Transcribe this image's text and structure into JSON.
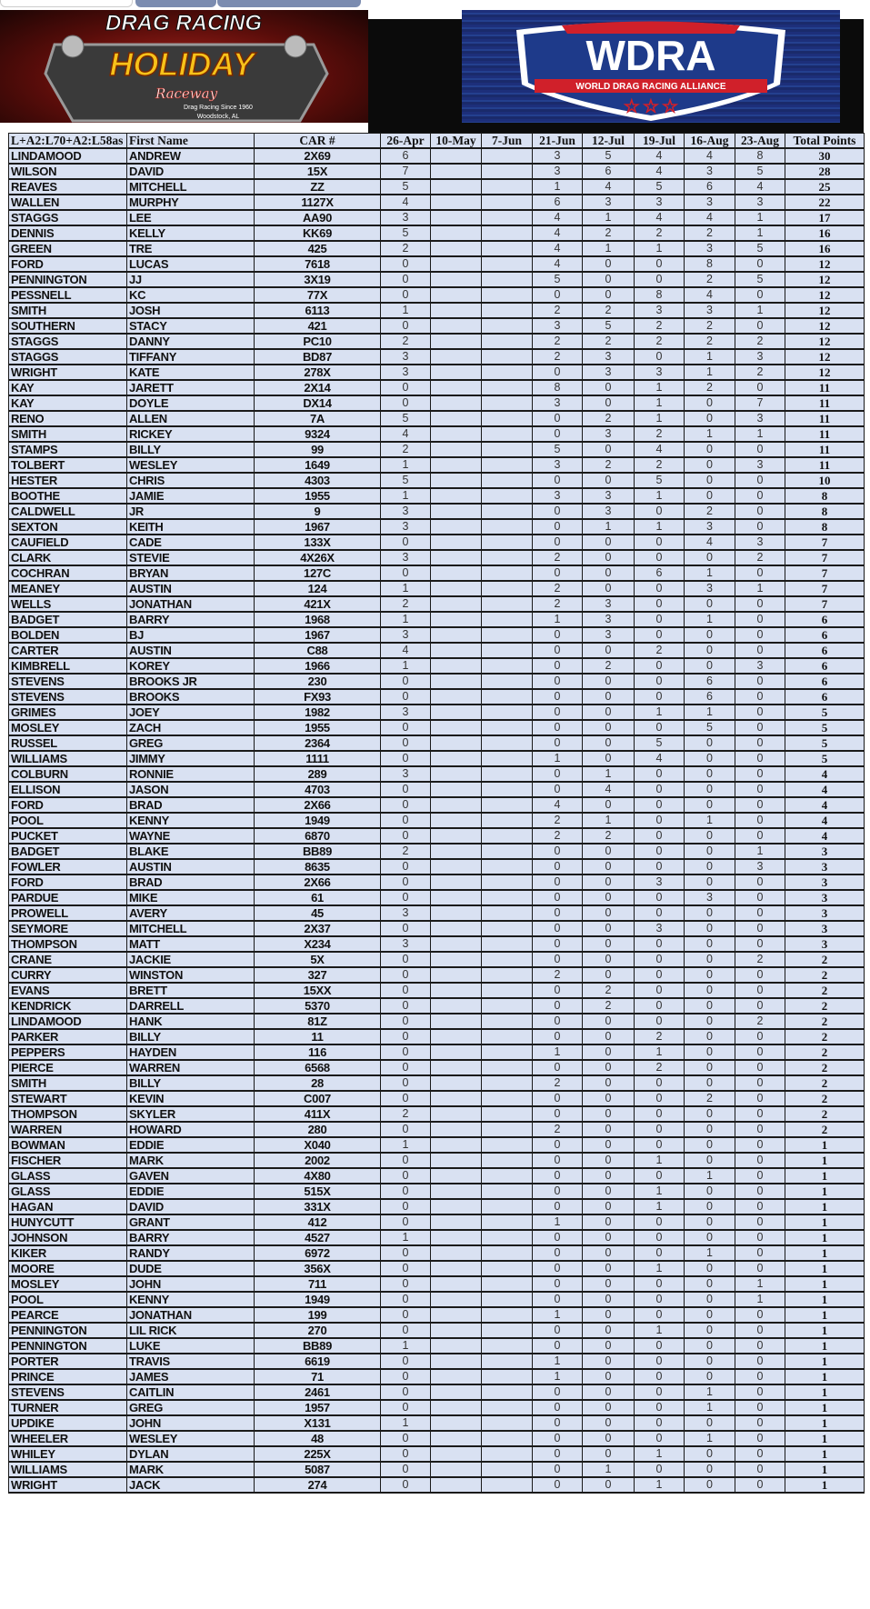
{
  "colors": {
    "cell_bg": "#d9e1f2",
    "border": "#1a1a1a",
    "logo_left_bg": "#8a1a12",
    "logo_right_bg": "#1d2f7a",
    "logo_yellow": "#f7c21a",
    "wdra_red": "#d0202a"
  },
  "logos": {
    "left": {
      "top_text": "DRAG RACING",
      "main_text": "HOLIDAY",
      "script_text": "Raceway",
      "tagline": "Drag Racing Since 1960",
      "location": "Woodstock, AL"
    },
    "right": {
      "main_text": "WDRA",
      "banner_text": "WORLD DRAG RACING ALLIANCE"
    }
  },
  "table": {
    "headers": [
      "L+A2:L70+A2:L58as",
      "First Name",
      "CAR #",
      "26-Apr",
      "10-May",
      "7-Jun",
      "21-Jun",
      "12-Jul",
      "19-Jul",
      "16-Aug",
      "23-Aug",
      "Total Points"
    ],
    "rows": [
      [
        "LINDAMOOD",
        "ANDREW",
        "2X69",
        "6",
        "",
        "",
        "3",
        "5",
        "4",
        "4",
        "8",
        "30"
      ],
      [
        "WILSON",
        "DAVID",
        "15X",
        "7",
        "",
        "",
        "3",
        "6",
        "4",
        "3",
        "5",
        "28"
      ],
      [
        "REAVES",
        "MITCHELL",
        "ZZ",
        "5",
        "",
        "",
        "1",
        "4",
        "5",
        "6",
        "4",
        "25"
      ],
      [
        "WALLEN",
        "MURPHY",
        "1127X",
        "4",
        "",
        "",
        "6",
        "3",
        "3",
        "3",
        "3",
        "22"
      ],
      [
        "STAGGS",
        "LEE",
        "AA90",
        "3",
        "",
        "",
        "4",
        "1",
        "4",
        "4",
        "1",
        "17"
      ],
      [
        "DENNIS",
        "KELLY",
        "KK69",
        "5",
        "",
        "",
        "4",
        "2",
        "2",
        "2",
        "1",
        "16"
      ],
      [
        "GREEN",
        "TRE",
        "425",
        "2",
        "",
        "",
        "4",
        "1",
        "1",
        "3",
        "5",
        "16"
      ],
      [
        "FORD",
        "LUCAS",
        "7618",
        "0",
        "",
        "",
        "4",
        "0",
        "0",
        "8",
        "0",
        "12"
      ],
      [
        "PENNINGTON",
        "JJ",
        "3X19",
        "0",
        "",
        "",
        "5",
        "0",
        "0",
        "2",
        "5",
        "12"
      ],
      [
        "PESSNELL",
        "KC",
        "77X",
        "0",
        "",
        "",
        "0",
        "0",
        "8",
        "4",
        "0",
        "12"
      ],
      [
        "SMITH",
        "JOSH",
        "6113",
        "1",
        "",
        "",
        "2",
        "2",
        "3",
        "3",
        "1",
        "12"
      ],
      [
        "SOUTHERN",
        "STACY",
        "421",
        "0",
        "",
        "",
        "3",
        "5",
        "2",
        "2",
        "0",
        "12"
      ],
      [
        "STAGGS",
        "DANNY",
        "PC10",
        "2",
        "",
        "",
        "2",
        "2",
        "2",
        "2",
        "2",
        "12"
      ],
      [
        "STAGGS",
        "TIFFANY",
        "BD87",
        "3",
        "",
        "",
        "2",
        "3",
        "0",
        "1",
        "3",
        "12"
      ],
      [
        "WRIGHT",
        "KATE",
        "278X",
        "3",
        "",
        "",
        "0",
        "3",
        "3",
        "1",
        "2",
        "12"
      ],
      [
        "KAY",
        "JARETT",
        "2X14",
        "0",
        "",
        "",
        "8",
        "0",
        "1",
        "2",
        "0",
        "11"
      ],
      [
        "KAY",
        "DOYLE",
        "DX14",
        "0",
        "",
        "",
        "3",
        "0",
        "1",
        "0",
        "7",
        "11"
      ],
      [
        "RENO",
        "ALLEN",
        "7A",
        "5",
        "",
        "",
        "0",
        "2",
        "1",
        "0",
        "3",
        "11"
      ],
      [
        "SMITH",
        "RICKEY",
        "9324",
        "4",
        "",
        "",
        "0",
        "3",
        "2",
        "1",
        "1",
        "11"
      ],
      [
        "STAMPS",
        "BILLY",
        "99",
        "2",
        "",
        "",
        "5",
        "0",
        "4",
        "0",
        "0",
        "11"
      ],
      [
        "TOLBERT",
        "WESLEY",
        "1649",
        "1",
        "",
        "",
        "3",
        "2",
        "2",
        "0",
        "3",
        "11"
      ],
      [
        "HESTER",
        "CHRIS",
        "4303",
        "5",
        "",
        "",
        "0",
        "0",
        "5",
        "0",
        "0",
        "10"
      ],
      [
        "BOOTHE",
        "JAMIE",
        "1955",
        "1",
        "",
        "",
        "3",
        "3",
        "1",
        "0",
        "0",
        "8"
      ],
      [
        "CALDWELL",
        "JR",
        "9",
        "3",
        "",
        "",
        "0",
        "3",
        "0",
        "2",
        "0",
        "8"
      ],
      [
        "SEXTON",
        "KEITH",
        "1967",
        "3",
        "",
        "",
        "0",
        "1",
        "1",
        "3",
        "0",
        "8"
      ],
      [
        "CAUFIELD",
        "CADE",
        "133X",
        "0",
        "",
        "",
        "0",
        "0",
        "0",
        "4",
        "3",
        "7"
      ],
      [
        "CLARK",
        "STEVIE",
        "4X26X",
        "3",
        "",
        "",
        "2",
        "0",
        "0",
        "0",
        "2",
        "7"
      ],
      [
        "COCHRAN",
        "BRYAN",
        "127C",
        "0",
        "",
        "",
        "0",
        "0",
        "6",
        "1",
        "0",
        "7"
      ],
      [
        "MEANEY",
        "AUSTIN",
        "124",
        "1",
        "",
        "",
        "2",
        "0",
        "0",
        "3",
        "1",
        "7"
      ],
      [
        "WELLS",
        "JONATHAN",
        "421X",
        "2",
        "",
        "",
        "2",
        "3",
        "0",
        "0",
        "0",
        "7"
      ],
      [
        "BADGET",
        "BARRY",
        "1968",
        "1",
        "",
        "",
        "1",
        "3",
        "0",
        "1",
        "0",
        "6"
      ],
      [
        "BOLDEN",
        "BJ",
        "1967",
        "3",
        "",
        "",
        "0",
        "3",
        "0",
        "0",
        "0",
        "6"
      ],
      [
        "CARTER",
        "AUSTIN",
        "C88",
        "4",
        "",
        "",
        "0",
        "0",
        "2",
        "0",
        "0",
        "6"
      ],
      [
        "KIMBRELL",
        "KOREY",
        "1966",
        "1",
        "",
        "",
        "0",
        "2",
        "0",
        "0",
        "3",
        "6"
      ],
      [
        "STEVENS",
        "BROOKS JR",
        "230",
        "0",
        "",
        "",
        "0",
        "0",
        "0",
        "6",
        "0",
        "6"
      ],
      [
        "STEVENS",
        "BROOKS",
        "FX93",
        "0",
        "",
        "",
        "0",
        "0",
        "0",
        "6",
        "0",
        "6"
      ],
      [
        "GRIMES",
        "JOEY",
        "1982",
        "3",
        "",
        "",
        "0",
        "0",
        "1",
        "1",
        "0",
        "5"
      ],
      [
        "MOSLEY",
        "ZACH",
        "1955",
        "0",
        "",
        "",
        "0",
        "0",
        "0",
        "5",
        "0",
        "5"
      ],
      [
        "RUSSEL",
        "GREG",
        "2364",
        "0",
        "",
        "",
        "0",
        "0",
        "5",
        "0",
        "0",
        "5"
      ],
      [
        "WILLIAMS",
        "JIMMY",
        "1111",
        "0",
        "",
        "",
        "1",
        "0",
        "4",
        "0",
        "0",
        "5"
      ],
      [
        "COLBURN",
        "RONNIE",
        "289",
        "3",
        "",
        "",
        "0",
        "1",
        "0",
        "0",
        "0",
        "4"
      ],
      [
        "ELLISON",
        "JASON",
        "4703",
        "0",
        "",
        "",
        "0",
        "4",
        "0",
        "0",
        "0",
        "4"
      ],
      [
        "FORD",
        "BRAD",
        "2X66",
        "0",
        "",
        "",
        "4",
        "0",
        "0",
        "0",
        "0",
        "4"
      ],
      [
        "POOL",
        "KENNY",
        "1949",
        "0",
        "",
        "",
        "2",
        "1",
        "0",
        "1",
        "0",
        "4"
      ],
      [
        "PUCKET",
        "WAYNE",
        "6870",
        "0",
        "",
        "",
        "2",
        "2",
        "0",
        "0",
        "0",
        "4"
      ],
      [
        "BADGET",
        "BLAKE",
        "BB89",
        "2",
        "",
        "",
        "0",
        "0",
        "0",
        "0",
        "1",
        "3"
      ],
      [
        "FOWLER",
        "AUSTIN",
        "8635",
        "0",
        "",
        "",
        "0",
        "0",
        "0",
        "0",
        "3",
        "3"
      ],
      [
        "FORD",
        "BRAD",
        "2X66",
        "0",
        "",
        "",
        "0",
        "0",
        "3",
        "0",
        "0",
        "3"
      ],
      [
        "PARDUE",
        "MIKE",
        "61",
        "0",
        "",
        "",
        "0",
        "0",
        "0",
        "3",
        "0",
        "3"
      ],
      [
        "PROWELL",
        "AVERY",
        "45",
        "3",
        "",
        "",
        "0",
        "0",
        "0",
        "0",
        "0",
        "3"
      ],
      [
        "SEYMORE",
        "MITCHELL",
        "2X37",
        "0",
        "",
        "",
        "0",
        "0",
        "3",
        "0",
        "0",
        "3"
      ],
      [
        "THOMPSON",
        "MATT",
        "X234",
        "3",
        "",
        "",
        "0",
        "0",
        "0",
        "0",
        "0",
        "3"
      ],
      [
        "CRANE",
        "JACKIE",
        "5X",
        "0",
        "",
        "",
        "0",
        "0",
        "0",
        "0",
        "2",
        "2"
      ],
      [
        "CURRY",
        "WINSTON",
        "327",
        "0",
        "",
        "",
        "2",
        "0",
        "0",
        "0",
        "0",
        "2"
      ],
      [
        "EVANS",
        "BRETT",
        "15XX",
        "0",
        "",
        "",
        "0",
        "2",
        "0",
        "0",
        "0",
        "2"
      ],
      [
        "KENDRICK",
        "DARRELL",
        "5370",
        "0",
        "",
        "",
        "0",
        "2",
        "0",
        "0",
        "0",
        "2"
      ],
      [
        "LINDAMOOD",
        "HANK",
        "81Z",
        "0",
        "",
        "",
        "0",
        "0",
        "0",
        "0",
        "2",
        "2"
      ],
      [
        "PARKER",
        "BILLY",
        "11",
        "0",
        "",
        "",
        "0",
        "0",
        "2",
        "0",
        "0",
        "2"
      ],
      [
        "PEPPERS",
        "HAYDEN",
        "116",
        "0",
        "",
        "",
        "1",
        "0",
        "1",
        "0",
        "0",
        "2"
      ],
      [
        "PIERCE",
        "WARREN",
        "6568",
        "0",
        "",
        "",
        "0",
        "0",
        "2",
        "0",
        "0",
        "2"
      ],
      [
        "SMITH",
        "BILLY",
        "28",
        "0",
        "",
        "",
        "2",
        "0",
        "0",
        "0",
        "0",
        "2"
      ],
      [
        "STEWART",
        "KEVIN",
        "C007",
        "0",
        "",
        "",
        "0",
        "0",
        "0",
        "2",
        "0",
        "2"
      ],
      [
        "THOMPSON",
        "SKYLER",
        "411X",
        "2",
        "",
        "",
        "0",
        "0",
        "0",
        "0",
        "0",
        "2"
      ],
      [
        "WARREN",
        "HOWARD",
        "280",
        "0",
        "",
        "",
        "2",
        "0",
        "0",
        "0",
        "0",
        "2"
      ],
      [
        "BOWMAN",
        "EDDIE",
        "X040",
        "1",
        "",
        "",
        "0",
        "0",
        "0",
        "0",
        "0",
        "1"
      ],
      [
        "FISCHER",
        "MARK",
        "2002",
        "0",
        "",
        "",
        "0",
        "0",
        "1",
        "0",
        "0",
        "1"
      ],
      [
        "GLASS",
        "GAVEN",
        "4X80",
        "0",
        "",
        "",
        "0",
        "0",
        "0",
        "1",
        "0",
        "1"
      ],
      [
        "GLASS",
        "EDDIE",
        "515X",
        "0",
        "",
        "",
        "0",
        "0",
        "1",
        "0",
        "0",
        "1"
      ],
      [
        "HAGAN",
        "DAVID",
        "331X",
        "0",
        "",
        "",
        "0",
        "0",
        "1",
        "0",
        "0",
        "1"
      ],
      [
        "HUNYCUTT",
        "GRANT",
        "412",
        "0",
        "",
        "",
        "1",
        "0",
        "0",
        "0",
        "0",
        "1"
      ],
      [
        "JOHNSON",
        "BARRY",
        "4527",
        "1",
        "",
        "",
        "0",
        "0",
        "0",
        "0",
        "0",
        "1"
      ],
      [
        "KIKER",
        "RANDY",
        "6972",
        "0",
        "",
        "",
        "0",
        "0",
        "0",
        "1",
        "0",
        "1"
      ],
      [
        "MOORE",
        "DUDE",
        "356X",
        "0",
        "",
        "",
        "0",
        "0",
        "1",
        "0",
        "0",
        "1"
      ],
      [
        "MOSLEY",
        "JOHN",
        "711",
        "0",
        "",
        "",
        "0",
        "0",
        "0",
        "0",
        "1",
        "1"
      ],
      [
        "POOL",
        "KENNY",
        "1949",
        "0",
        "",
        "",
        "0",
        "0",
        "0",
        "0",
        "1",
        "1"
      ],
      [
        "PEARCE",
        "JONATHAN",
        "199",
        "0",
        "",
        "",
        "1",
        "0",
        "0",
        "0",
        "0",
        "1"
      ],
      [
        "PENNINGTON",
        "LIL RICK",
        "270",
        "0",
        "",
        "",
        "0",
        "0",
        "1",
        "0",
        "0",
        "1"
      ],
      [
        "PENNINGTON",
        "LUKE",
        "BB89",
        "1",
        "",
        "",
        "0",
        "0",
        "0",
        "0",
        "0",
        "1"
      ],
      [
        "PORTER",
        "TRAVIS",
        "6619",
        "0",
        "",
        "",
        "1",
        "0",
        "0",
        "0",
        "0",
        "1"
      ],
      [
        "PRINCE",
        "JAMES",
        "71",
        "0",
        "",
        "",
        "1",
        "0",
        "0",
        "0",
        "0",
        "1"
      ],
      [
        "STEVENS",
        "CAITLIN",
        "2461",
        "0",
        "",
        "",
        "0",
        "0",
        "0",
        "1",
        "0",
        "1"
      ],
      [
        "TURNER",
        "GREG",
        "1957",
        "0",
        "",
        "",
        "0",
        "0",
        "0",
        "1",
        "0",
        "1"
      ],
      [
        "UPDIKE",
        "JOHN",
        "X131",
        "1",
        "",
        "",
        "0",
        "0",
        "0",
        "0",
        "0",
        "1"
      ],
      [
        "WHEELER",
        "WESLEY",
        "48",
        "0",
        "",
        "",
        "0",
        "0",
        "0",
        "1",
        "0",
        "1"
      ],
      [
        "WHILEY",
        "DYLAN",
        "225X",
        "0",
        "",
        "",
        "0",
        "0",
        "1",
        "0",
        "0",
        "1"
      ],
      [
        "WILLIAMS",
        "MARK",
        "5087",
        "0",
        "",
        "",
        "0",
        "1",
        "0",
        "0",
        "0",
        "1"
      ],
      [
        "WRIGHT",
        "JACK",
        "274",
        "0",
        "",
        "",
        "0",
        "0",
        "1",
        "0",
        "0",
        "1"
      ]
    ]
  }
}
